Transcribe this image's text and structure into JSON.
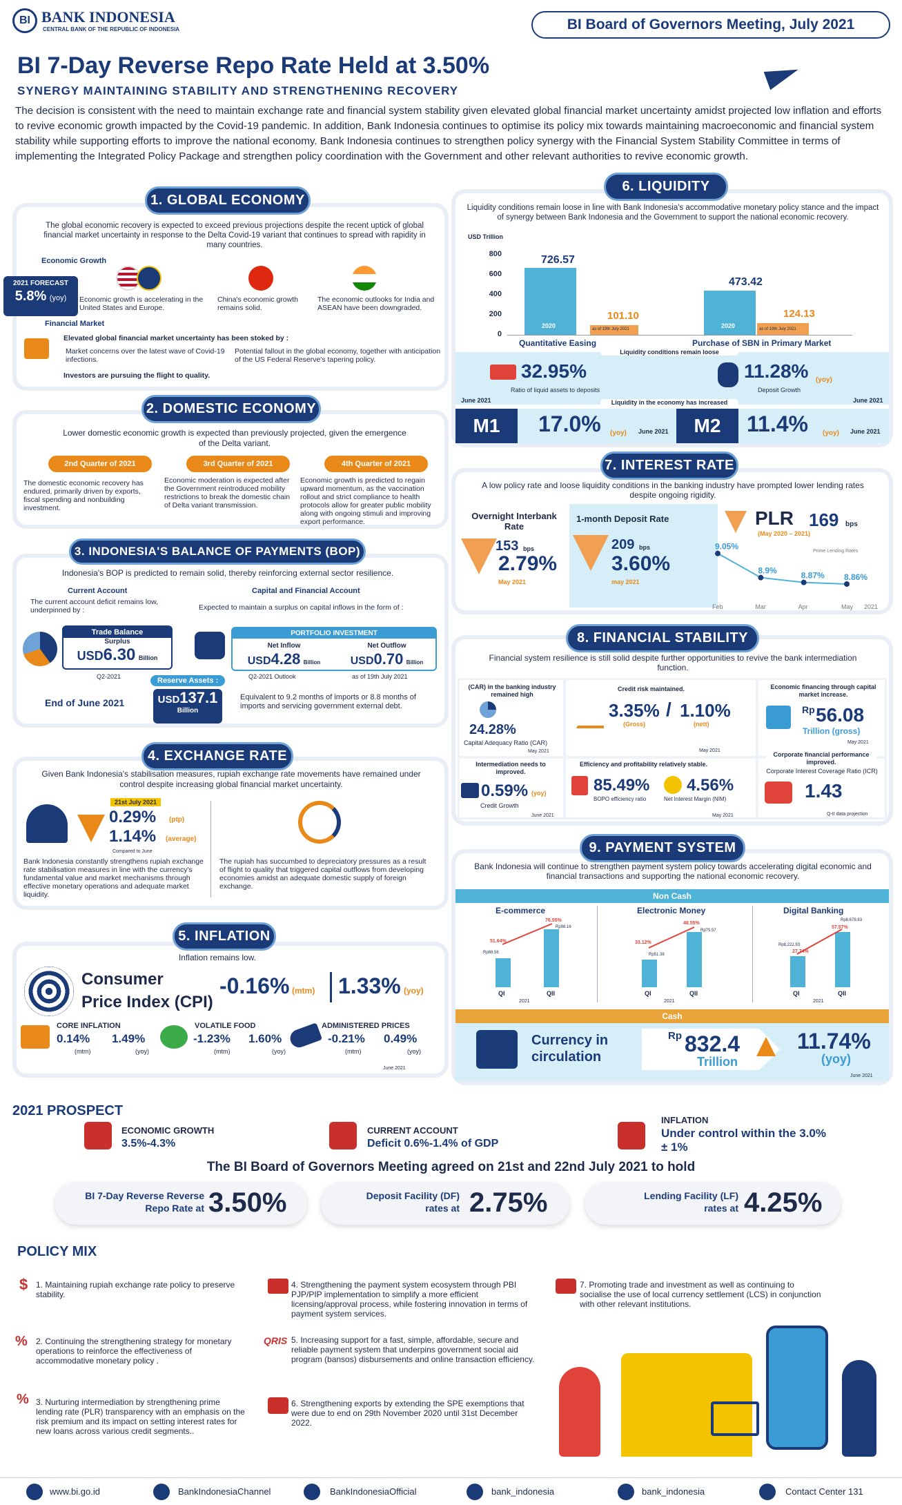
{
  "header": {
    "logo_name": "BANK INDONESIA",
    "logo_sub": "CENTRAL BANK OF THE REPUBLIC OF INDONESIA",
    "meeting": "BI Board of Governors Meeting, July 2021"
  },
  "title": "BI 7-Day Reverse Repo Rate Held at 3.50%",
  "subtitle": "SYNERGY MAINTAINING STABILITY AND STRENGTHENING RECOVERY",
  "intro": "The decision is consistent with the need to maintain exchange rate and financial system stability given elevated global financial market uncertainty amidst projected low inflation and efforts to revive economic growth impacted by the Covid-19 pandemic.  In addition, Bank Indonesia continues to optimise its policy mix towards maintaining macroeconomic and financial system stability while supporting efforts to improve the national economy.  Bank Indonesia continues to strengthen policy synergy with the Financial System Stability Committee in terms of implementing the Integrated Policy Package and strengthen policy coordination with the Government and other relevant authorities to revive economic growth.",
  "global": {
    "title": "1. GLOBAL ECONOMY",
    "lead": "The global economic recovery is expected to exceed previous projections despite the recent uptick of global financial market uncertainty in response to the Delta Covid-19 variant that continues to spread with rapidity in many countries.",
    "growth_label": "Economic Growth",
    "forecast_label": "2021 FORECAST",
    "forecast_value": "5.8%",
    "forecast_unit": "(yoy)",
    "us_eu": "Economic growth is accelerating in the United States and Europe.",
    "china": "China's  economic growth remains solid.",
    "india": "The economic outlooks for India and ASEAN have been downgraded.",
    "fin_label": "Financial Market",
    "fin_lead": "Elevated global financial market uncertainty has been stoked by :",
    "b1": "Market concerns over the latest wave of Covid-19 infections.",
    "b2": "Potential fallout in the global economy, together with anticipation of the US Federal Reserve's tapering policy.",
    "b3": "Investors are pursuing the flight to quality."
  },
  "domestic": {
    "title": "2. DOMESTIC ECONOMY",
    "lead": "Lower domestic economic growth is expected than previously projected, given the emergence of the Delta variant.",
    "q2": "2nd Quarter of 2021",
    "q3": "3rd Quarter of 2021",
    "q4": "4th Quarter of 2021",
    "t2": "The domestic economic recovery has endured, primarily driven by exports, fiscal spending and nonbuilding investment.",
    "t3": "Economic moderation is expected after the Government reintroduced mobility restrictions to break the domestic chain of Delta variant transmission.",
    "t4": "Economic growth is predicted to regain upward momentum, as the vaccination rollout and strict compliance to health protocols allow for greater public mobility along with ongoing stimuli and improving export performance."
  },
  "bop": {
    "title": "3. INDONESIA'S BALANCE OF PAYMENTS (BOP)",
    "lead": "Indonesia's BOP is predicted to remain solid, thereby reinforcing external sector resilience.",
    "ca_label": "Current Account",
    "ca_text": "The current account deficit remains low, underpinned by :",
    "tb_label": "Trade Balance",
    "tb_sub": "Surplus",
    "tb_cur": "USD",
    "tb_val": "6.30",
    "tb_unit": "Billion",
    "tb_note": "Q2-2021",
    "cfa_label": "Capital and Financial Account",
    "cfa_text": "Expected to maintain a surplus on capital inflows  in the form of :",
    "pi_label": "PORTFOLIO INVESTMENT",
    "in_label": "Net Inflow",
    "in_cur": "USD",
    "in_val": "4.28",
    "in_unit": "Billion",
    "in_note": "Q2-2021 Outlook",
    "out_label": "Net Outflow",
    "out_cur": "USD",
    "out_val": "0.70",
    "out_unit": "Billion",
    "out_note": "as of 19th July 2021",
    "ra_label": "Reserve Assets :",
    "ra_date": "End of June 2021",
    "ra_cur": "USD",
    "ra_val": "137.1",
    "ra_unit": "Billion",
    "ra_text": "Equivalent to 9.2 months of imports or 8.8 months of imports and servicing government external debt."
  },
  "exchange": {
    "title": "4. EXCHANGE RATE",
    "lead": "Given Bank Indonesia's stabilisation measures, rupiah exchange rate movements have remained under control despite increasing global financial market uncertainty.",
    "date": "21st July 2021",
    "v1": "0.29%",
    "u1": "(ptp)",
    "v2": "1.14%",
    "u2": "(average)",
    "note": "Compared to June",
    "left": "Bank Indonesia constantly strengthens rupiah exchange rate stabilisation measures in line with the currency's fundamental value and market mechanisms through effective monetary operations and adequate market liquidity.",
    "right": "The rupiah has succumbed to depreciatory pressures as a result of flight to quality that triggered capital outflows from developing economies amidst an adequate domestic supply of foreign exchange."
  },
  "inflation": {
    "title": "5. INFLATION",
    "lead": "Inflation remains low.",
    "cpi1": "Consumer",
    "cpi2": "Price Index (CPI)",
    "mtm": "-0.16%",
    "mtm_u": "(mtm)",
    "yoy": "1.33%",
    "yoy_u": "(yoy)",
    "core": "CORE INFLATION",
    "core_m": "0.14%",
    "core_y": "1.49%",
    "vf": "VOLATILE FOOD",
    "vf_m": "-1.23%",
    "vf_y": "1.60%",
    "ap": "ADMINISTERED PRICES",
    "ap_m": "-0.21%",
    "ap_y": "0.49%",
    "mu": "(mtm)",
    "yu": "(yoy)",
    "date": "June 2021"
  },
  "liquidity": {
    "title": "6. LIQUIDITY",
    "lead": "Liquidity conditions remain loose in line with Bank Indonesia's accommodative monetary policy stance and the impact of synergy between Bank Indonesia and the Government to support the national economic recovery.",
    "unit": "USD Trillion",
    "yticks": [
      "800",
      "600",
      "400",
      "200",
      "0"
    ],
    "qe_label": "Quantitative Easing",
    "sbn_label": "Purchase of SBN in Primary Market",
    "qe_2020": "726.57",
    "qe_2021": "101.10",
    "sbn_2020": "473.42",
    "sbn_2021": "124.13",
    "bar_2020": "2020",
    "bar_asof": "as of 19th July 2021",
    "loose": "Liquidity conditions remain loose",
    "l1": "32.95%",
    "l1_t": "Ratio of liquid assets to deposits",
    "l2": "11.28%",
    "l2_u": "(yoy)",
    "l2_t": "Deposit Growth",
    "june": "June 2021",
    "incr": "Liquidity in the economy has increased",
    "m1": "M1",
    "m1_v": "17.0%",
    "m1_u": "(yoy)",
    "m2": "M2",
    "m2_v": "11.4%",
    "m2_u": "(yoy)"
  },
  "interest": {
    "title": "7. INTEREST RATE",
    "lead": "A low policy rate and loose liquidity conditions in the banking industry have prompted lower lending rates despite ongoing rigidity.",
    "oi": "Overnight Interbank Rate",
    "oi_bps": "153",
    "oi_pct": "2.79%",
    "oi_date": "May 2021",
    "dr": "1-month Deposit Rate",
    "dr_bps": "209",
    "dr_pct": "3.60%",
    "dr_date": "may 2021",
    "bps": "bps",
    "plr": "PLR",
    "plr_bps": "169",
    "plr_range": "(May 2020 – 2021)",
    "plr_legend": "Prime Lending Rates"
  },
  "chart_data": {
    "type": "line",
    "title": "",
    "x": [
      "Feb",
      "Mar",
      "Apr",
      "May"
    ],
    "year": "2021",
    "series": [
      {
        "name": "Prime Lending Rates",
        "values": [
          9.05,
          8.9,
          8.87,
          8.86
        ]
      }
    ],
    "labels": [
      "9.05%",
      "8.9%",
      "8.87%",
      "8.86%"
    ]
  },
  "fsstab": {
    "title": "8. FINANCIAL  STABILITY",
    "lead": "Financial system resilience is still solid despite further opportunities to revive the bank intermediation function.",
    "car_t": "(CAR) in the banking industry remained high",
    "car_v": "24.28%",
    "car_l": "Capital Adequacy Ratio  (CAR)",
    "car_d": "May 2021",
    "cr_t": "Credit risk maintained.",
    "npl_g": "3.35%",
    "npl_gl": "(Gross)",
    "npl_n": "1.10%",
    "npl_nl": "(nett)",
    "cr_d": "May 2021",
    "ef_t": "Economic financing through capital market increase.",
    "ef_rp": "Rp",
    "ef_v": "56.08",
    "ef_u": "Trillion (gross)",
    "ef_d": "May 2021",
    "im_t": "Intermediation needs to improved.",
    "cg_v": "0.59%",
    "cg_u": "(yoy)",
    "cg_l": "Credit Growth",
    "cg_d": "June 2021",
    "ep_t": "Efficiency and profitability relatively stable.",
    "bopo_v": "85.49%",
    "bopo_l": "BOPO efficiency ratio",
    "nim_v": "4.56%",
    "nim_l": "Net Interest Margin (NIM)",
    "ep_d": "May 2021",
    "cf_t": "Corporate financial performance improved.",
    "icr_l": "Corporate Interest Coverage Ratio (ICR)",
    "icr_v": "1.43",
    "icr_d": "Q-II data projection"
  },
  "payment": {
    "title": "9. PAYMENT SYSTEM",
    "lead": "Bank Indonesia will continue to strengthen payment system policy towards accelerating digital economic and financial transactions and supporting the national economic recovery.",
    "noncash": "Non Cash",
    "ec": "E-commerce",
    "em": "Electronic Money",
    "db": "Digital Banking",
    "cash": "Cash",
    "cic1": "Currency in",
    "cic2": "circulation",
    "rp": "Rp",
    "cic_v": "832.4",
    "cic_u": "Trillion",
    "cic_g": "11.74%",
    "cic_gu": "(yoy)",
    "date": "June 2021",
    "q1": "QI",
    "q2": "QII",
    "yr": "2021",
    "ec_a": "51.64%",
    "ec_b": "76.55%",
    "ec_c": "Rp88.56",
    "ec_d": "Rp98.16",
    "em_a": "33.12%",
    "em_b": "48.55%",
    "em_c": "Rp51.38",
    "em_d": "Rp75.57",
    "db_a": "27.74%",
    "db_b": "57.57%",
    "db_c": "Rp8,222.93",
    "db_d": "Rp8,678.83"
  },
  "prospect": {
    "title": "2021 PROSPECT",
    "eg": "ECONOMIC GROWTH",
    "eg_v": "3.5%-4.3%",
    "ca": "CURRENT ACCOUNT",
    "ca_v": "Deficit 0.6%-1.4% of GDP",
    "inf": "INFLATION",
    "inf_v": "Under control within the 3.0% ± 1%"
  },
  "agreed": "The BI Board of Governors Meeting agreed on 21st and 22nd July 2021 to hold",
  "rates": {
    "r1_l1": "BI 7-Day Reverse Reverse",
    "r1_l2": "Repo Rate at",
    "r1_v": "3.50%",
    "r2_l1": "Deposit Facility (DF)",
    "r2_l2": "rates at",
    "r2_v": "2.75%",
    "r3_l1": "Lending Facility (LF)",
    "r3_l2": "rates at",
    "r3_v": "4.25%"
  },
  "policy": {
    "title": "POLICY MIX",
    "p1": "1. Maintaining rupiah exchange rate policy to preserve stability.",
    "p2": "2. Continuing the strengthening strategy for monetary operations to reinforce the effectiveness of accommodative monetary policy .",
    "p3": "3. Nurturing intermediation by strengthening prime lending rate (PLR) transparency with an emphasis on the risk premium and its impact on setting interest rates for new loans across various credit segments..",
    "p4": "4. Strengthening the payment system ecosystem through PBI PJP/PIP implementation to simplify a more efficient licensing/approval process, while fostering innovation in terms of payment system services.",
    "p5": "5. Increasing support for a fast, simple, affordable, secure and reliable payment system that underpins government social aid program (bansos) disbursements and online transaction efficiency.",
    "p6": "6. Strengthening exports by extending the SPE exemptions that were due to end on 29th November 2020 until 31st December 2022.",
    "p7": "7. Promoting trade and investment as well as continuing to socialise the use of local currency settlement (LCS) in conjunction with other relevant institutions.",
    "qris": "QRIS"
  },
  "footer": {
    "web": "www.bi.go.id",
    "yt": "BankIndonesiaChannel",
    "fb": "BankIndonesiaOfficial",
    "tw": "bank_indonesia",
    "ig": "bank_indonesia",
    "cc": "Contact Center 131"
  },
  "colors": {
    "navy": "#1b3a78",
    "orange": "#e8891a",
    "light": "#e9eef6",
    "teal": "#3a9bd5"
  }
}
